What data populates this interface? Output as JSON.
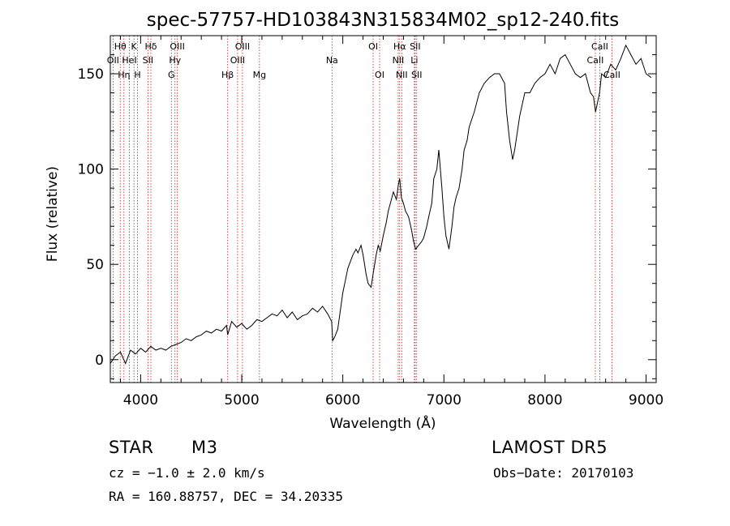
{
  "chart_data": {
    "type": "line",
    "title": "spec-57757-HD103843N315834M02_sp12-240.fits",
    "xlabel": "Wavelength (Å)",
    "ylabel": "Flux (relative)",
    "xlim": [
      3700,
      9100
    ],
    "ylim": [
      -12,
      170
    ],
    "xticks": [
      4000,
      5000,
      6000,
      7000,
      8000,
      9000
    ],
    "yticks": [
      0,
      50,
      100,
      150
    ],
    "series": [
      {
        "x": [
          3700,
          3750,
          3800,
          3850,
          3900,
          3950,
          4000,
          4050,
          4100,
          4150,
          4200,
          4250,
          4300,
          4350,
          4400,
          4450,
          4500,
          4550,
          4600,
          4650,
          4700,
          4750,
          4800,
          4850,
          4861,
          4900,
          4950,
          5000,
          5050,
          5100,
          5150,
          5200,
          5250,
          5300,
          5350,
          5400,
          5450,
          5500,
          5550,
          5600,
          5650,
          5700,
          5750,
          5800,
          5850,
          5890,
          5900,
          5920,
          5950,
          6000,
          6050,
          6100,
          6130,
          6150,
          6180,
          6200,
          6230,
          6250,
          6280,
          6300,
          6330,
          6350,
          6370,
          6400,
          6430,
          6450,
          6480,
          6500,
          6530,
          6550,
          6563,
          6580,
          6600,
          6620,
          6650,
          6680,
          6700,
          6720,
          6750,
          6780,
          6800,
          6830,
          6850,
          6880,
          6900,
          6930,
          6950,
          6980,
          7000,
          7020,
          7050,
          7080,
          7100,
          7120,
          7150,
          7180,
          7200,
          7230,
          7250,
          7300,
          7350,
          7400,
          7450,
          7500,
          7550,
          7600,
          7620,
          7650,
          7680,
          7700,
          7750,
          7800,
          7850,
          7900,
          7950,
          8000,
          8050,
          8100,
          8150,
          8200,
          8250,
          8300,
          8350,
          8400,
          8450,
          8480,
          8500,
          8520,
          8540,
          8560,
          8600,
          8650,
          8700,
          8750,
          8800,
          8850,
          8900,
          8950,
          9000,
          9050
        ],
        "y": [
          -2,
          2,
          4,
          -2,
          5,
          3,
          6,
          4,
          7,
          5,
          6,
          5,
          7,
          8,
          9,
          11,
          10,
          12,
          13,
          15,
          14,
          16,
          15,
          18,
          13,
          20,
          17,
          19,
          16,
          18,
          21,
          20,
          22,
          24,
          23,
          26,
          22,
          25,
          21,
          23,
          24,
          27,
          25,
          28,
          24,
          20,
          10,
          12,
          16,
          35,
          48,
          55,
          58,
          56,
          60,
          55,
          45,
          40,
          38,
          45,
          55,
          60,
          57,
          65,
          72,
          78,
          84,
          88,
          84,
          92,
          95,
          85,
          82,
          78,
          75,
          68,
          62,
          58,
          60,
          62,
          64,
          70,
          75,
          82,
          95,
          100,
          110,
          90,
          75,
          65,
          58,
          70,
          80,
          85,
          90,
          100,
          110,
          115,
          122,
          130,
          140,
          145,
          148,
          150,
          150,
          145,
          130,
          115,
          105,
          110,
          128,
          140,
          140,
          145,
          148,
          150,
          155,
          150,
          158,
          160,
          155,
          150,
          148,
          150,
          140,
          138,
          130,
          135,
          140,
          150,
          148,
          155,
          152,
          158,
          165,
          160,
          155,
          158,
          150,
          148
        ]
      }
    ],
    "lines": [
      {
        "x": 3727,
        "label": "OII",
        "row": 1
      },
      {
        "x": 3798,
        "label": "Hθ",
        "row": 0
      },
      {
        "x": 3835,
        "label": "Hη",
        "row": 2
      },
      {
        "x": 3889,
        "label": "HeI",
        "row": 1
      },
      {
        "x": 3934,
        "label": "K",
        "row": 0
      },
      {
        "x": 3969,
        "label": "H",
        "row": 2
      },
      {
        "x": 4101,
        "label": "Hδ",
        "row": 0
      },
      {
        "x": 4072,
        "label": "SII",
        "row": 1
      },
      {
        "x": 4304,
        "label": "G",
        "row": 2
      },
      {
        "x": 4340,
        "label": "Hγ",
        "row": 1
      },
      {
        "x": 4363,
        "label": "OIII",
        "row": 0
      },
      {
        "x": 4861,
        "label": "Hβ",
        "row": 2
      },
      {
        "x": 4959,
        "label": "OIII",
        "row": 1
      },
      {
        "x": 5007,
        "label": "OIII",
        "row": 0
      },
      {
        "x": 5175,
        "label": "Mg",
        "row": 2
      },
      {
        "x": 5893,
        "label": "Na",
        "row": 1
      },
      {
        "x": 6300,
        "label": "OI",
        "row": 0
      },
      {
        "x": 6364,
        "label": "OI",
        "row": 2
      },
      {
        "x": 6548,
        "label": "NII",
        "row": 1
      },
      {
        "x": 6563,
        "label": "Hα",
        "row": 0
      },
      {
        "x": 6583,
        "label": "NII",
        "row": 2
      },
      {
        "x": 6708,
        "label": "Li",
        "row": 1
      },
      {
        "x": 6716,
        "label": "SII",
        "row": 0
      },
      {
        "x": 6731,
        "label": "SII",
        "row": 2
      },
      {
        "x": 8498,
        "label": "CaII",
        "row": 1
      },
      {
        "x": 8542,
        "label": "CaII",
        "row": 0
      },
      {
        "x": 8662,
        "label": "CaII",
        "row": 2
      }
    ]
  },
  "info": {
    "class": "STAR",
    "subclass": "M3",
    "survey": "LAMOST DR5",
    "cz": "cz = −1.0 ± 2.0 km/s",
    "obs_date": "Obs−Date: 20170103",
    "radec": "RA = 160.88757, DEC =  34.20335"
  }
}
